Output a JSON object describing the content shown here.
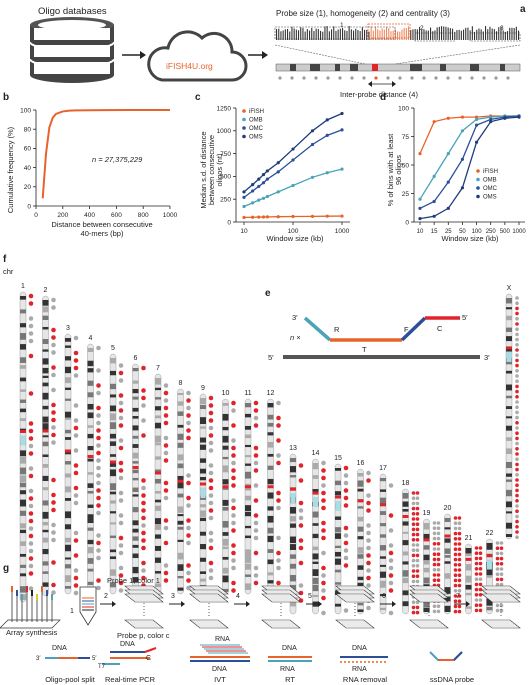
{
  "panel_labels": {
    "a": "a",
    "b": "b",
    "c": "c",
    "d": "d",
    "e": "e",
    "f": "f",
    "g": "g"
  },
  "a": {
    "db_label": "Oligo databases",
    "cloud_label": "iFISH4U.org",
    "probe_title": "Probe size (1), homogeneity (2) and centrality (3)",
    "n1": "1",
    "n2": "2",
    "n3": "3",
    "inter_probe": "Inter-probe distance (4)"
  },
  "b": {
    "ylabel": "Cumulative frequency (%)",
    "xlabel1": "Distance between consecutive",
    "xlabel2": "40-mers (bp)",
    "annotation": "n = 27,375,229",
    "chart_data": {
      "type": "line",
      "x": [
        50,
        75,
        100,
        125,
        150,
        200,
        250,
        300,
        400,
        500,
        700,
        1000
      ],
      "y": [
        8,
        55,
        82,
        92,
        96,
        98.5,
        99.3,
        99.6,
        99.8,
        99.9,
        100,
        100
      ],
      "xlim": [
        0,
        1000
      ],
      "ylim": [
        0,
        100
      ],
      "xticks": [
        "0",
        "200",
        "400",
        "600",
        "800",
        "1000"
      ],
      "yticks": [
        "0",
        "20",
        "40",
        "60",
        "80",
        "100"
      ],
      "color": "#e8632b"
    }
  },
  "c": {
    "ylabel1": "Median s.d. of distance",
    "ylabel2": "between consecutive",
    "ylabel3": "oligos (nt)",
    "xlabel": "Window size (kb)",
    "chart_data": {
      "type": "line",
      "x": [
        10,
        15,
        20,
        25,
        30,
        50,
        100,
        250,
        500,
        1000
      ],
      "ylim": [
        0,
        1250
      ],
      "xscale": "log",
      "xticks": [
        "10",
        "100",
        "1000"
      ],
      "yticks": [
        "0",
        "250",
        "500",
        "750",
        "1000",
        "1250"
      ],
      "legend": "top-left",
      "series": [
        {
          "name": "iFISH",
          "color": "#e8632b",
          "values": [
            50,
            52,
            54,
            55,
            56,
            58,
            60,
            62,
            64,
            65
          ]
        },
        {
          "name": "OMB",
          "color": "#4aa3b8",
          "values": [
            170,
            210,
            240,
            260,
            280,
            330,
            400,
            490,
            540,
            580
          ]
        },
        {
          "name": "OMC",
          "color": "#2d4f9a",
          "values": [
            270,
            340,
            390,
            430,
            470,
            550,
            680,
            850,
            950,
            1010
          ]
        },
        {
          "name": "OMS",
          "color": "#1f3d7a",
          "values": [
            330,
            410,
            470,
            520,
            560,
            650,
            800,
            1000,
            1120,
            1190
          ]
        }
      ]
    }
  },
  "d": {
    "ylabel1": "% of bins with at least",
    "ylabel2": "96 oligos",
    "xlabel": "Window size (kb)",
    "chart_data": {
      "type": "line",
      "categories": [
        "10",
        "15",
        "25",
        "50",
        "100",
        "250",
        "500",
        "1000"
      ],
      "ylim": [
        0,
        100
      ],
      "yticks": [
        "0",
        "25",
        "50",
        "75",
        "100"
      ],
      "legend": "bottom-right",
      "series": [
        {
          "name": "iFISH",
          "color": "#e8632b",
          "values": [
            60,
            88,
            91,
            92,
            92,
            93,
            93,
            93
          ]
        },
        {
          "name": "OMB",
          "color": "#4aa3b8",
          "values": [
            20,
            40,
            60,
            80,
            90,
            92,
            93,
            93
          ]
        },
        {
          "name": "OMC",
          "color": "#2d4f9a",
          "values": [
            12,
            18,
            35,
            55,
            85,
            90,
            92,
            93
          ]
        },
        {
          "name": "OMS",
          "color": "#1f3d7a",
          "values": [
            3,
            5,
            12,
            30,
            70,
            88,
            91,
            92
          ]
        }
      ]
    }
  },
  "e": {
    "three": "3′",
    "five": "5′",
    "R": "R",
    "T": "T",
    "F": "F",
    "C": "C",
    "n": "n ×",
    "five_b": "5′",
    "three_b": "3′"
  },
  "f": {
    "chr_label": "chr",
    "chromosomes": [
      "1",
      "2",
      "3",
      "4",
      "5",
      "6",
      "7",
      "8",
      "9",
      "10",
      "11",
      "12",
      "13",
      "14",
      "15",
      "16",
      "17",
      "18",
      "19",
      "20",
      "21",
      "22",
      "X"
    ]
  },
  "g": {
    "array_label": "Array synthesis",
    "probe1": "Probe 1, color 1",
    "probe_p": "Probe p, color c",
    "steps": [
      "1",
      "2",
      "3",
      "4",
      "5",
      "6",
      "7"
    ],
    "mol_labels": {
      "dna": "DNA",
      "rna": "RNA",
      "c": "C",
      "t7": "T7",
      "three": "3′",
      "five": "5′"
    },
    "stages": [
      "Oligo-pool split",
      "Real-time PCR",
      "IVT",
      "RT",
      "RNA removal",
      "ssDNA probe"
    ]
  }
}
